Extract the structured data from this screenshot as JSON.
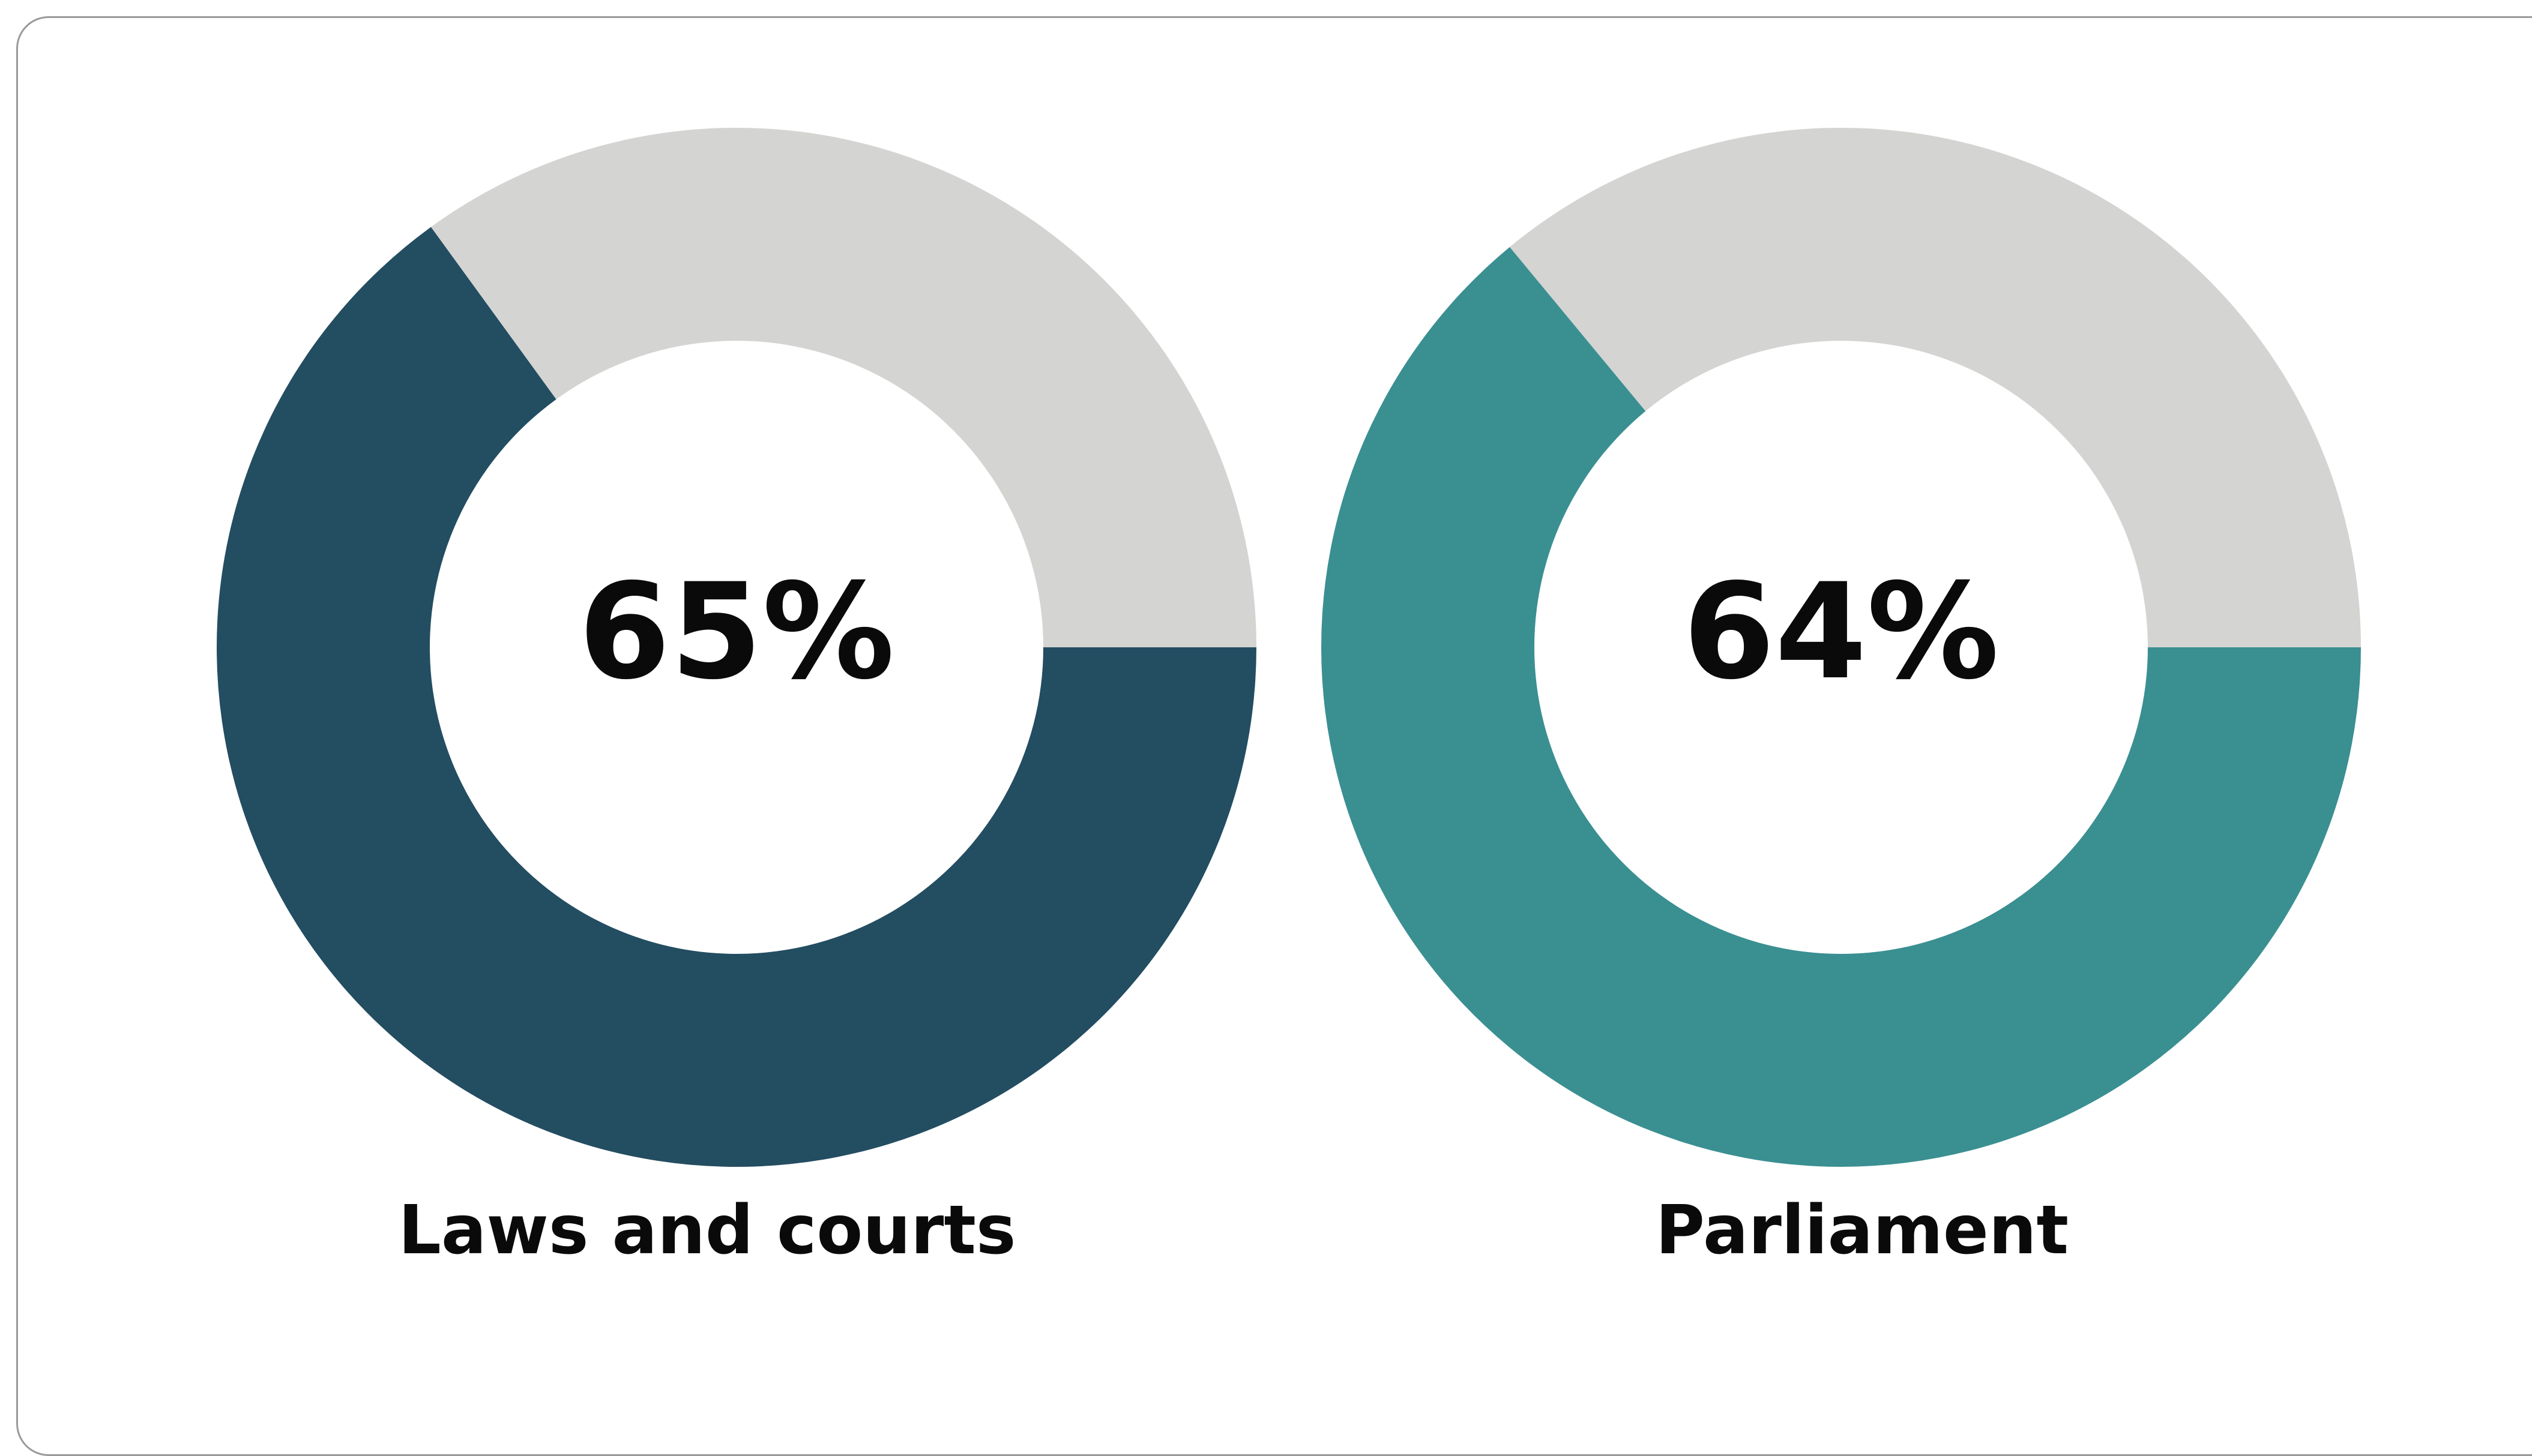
{
  "chart_data": [
    {
      "type": "donut",
      "label": "Laws and courts",
      "values": [
        65,
        35
      ],
      "value_labels": [
        "65%",
        null
      ],
      "colors": [
        "#234d61",
        "#d4d4d2"
      ]
    },
    {
      "type": "donut",
      "label": "Parliament",
      "values": [
        64,
        36
      ],
      "value_labels": [
        "64%",
        null
      ],
      "colors": [
        "#3a8f91",
        "#d4d4d2"
      ]
    }
  ]
}
